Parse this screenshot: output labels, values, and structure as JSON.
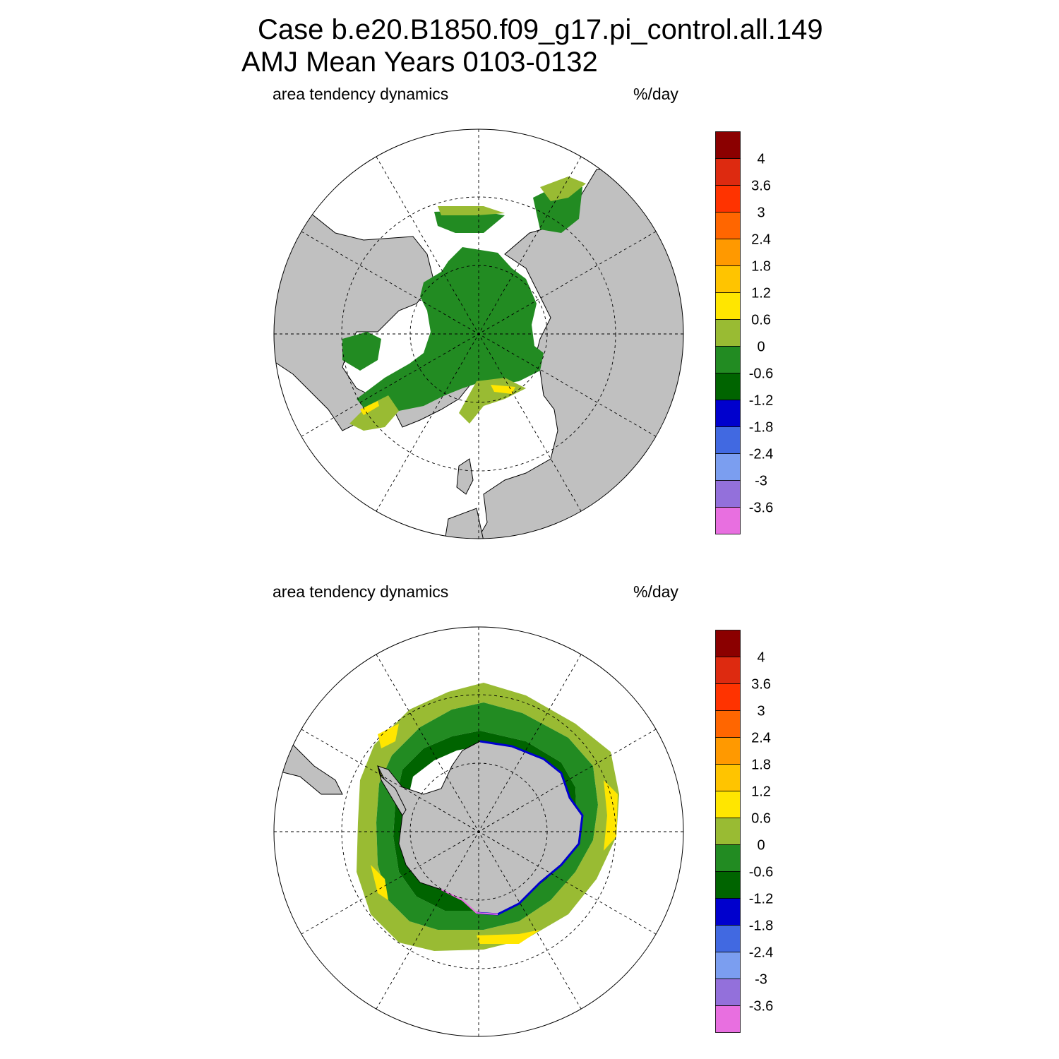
{
  "title": {
    "line1": "Case b.e20.B1850.f09_g17.pi_control.all.149",
    "line2": "AMJ Mean    Years 0103-0132"
  },
  "panels": [
    {
      "id": "north",
      "variable": "area tendency dynamics",
      "units": "%/day"
    },
    {
      "id": "south",
      "variable": "area tendency dynamics",
      "units": "%/day"
    }
  ],
  "colorbar": {
    "levels": [
      "4",
      "3.6",
      "3",
      "2.4",
      "1.8",
      "1.2",
      "0.6",
      "0",
      "-0.6",
      "-1.2",
      "-1.8",
      "-2.4",
      "-3",
      "-3.6"
    ],
    "colors": [
      "#8b0000",
      "#dd2a10",
      "#ff3300",
      "#ff6600",
      "#ff9900",
      "#ffc400",
      "#ffe600",
      "#99bb33",
      "#228b22",
      "#006400",
      "#0000cd",
      "#4169e1",
      "#7b9ef0",
      "#9370db",
      "#e86fe0"
    ]
  },
  "map_colors": {
    "land": "#c0c0c0",
    "ocean": "#ffffff"
  }
}
